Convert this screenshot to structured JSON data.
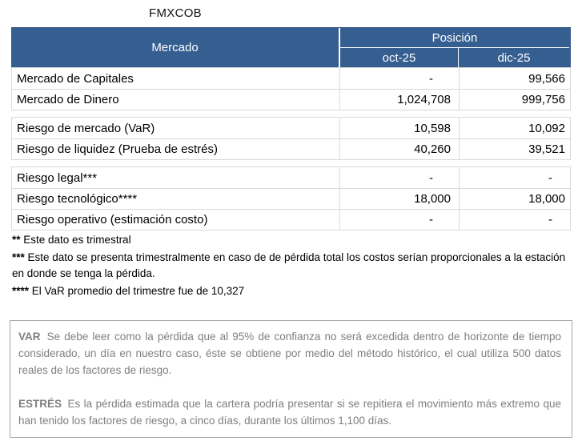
{
  "title": "FMXCOB",
  "table": {
    "header": {
      "mercado": "Mercado",
      "posicion": "Posición",
      "col1": "oct-25",
      "col2": "dic-25"
    },
    "sections": [
      {
        "rows": [
          {
            "label": "Mercado de Capitales",
            "oct": "-",
            "dic": "99,566"
          },
          {
            "label": "Mercado de Dinero",
            "oct": "1,024,708",
            "dic": "999,756"
          }
        ]
      },
      {
        "rows": [
          {
            "label": "Riesgo de mercado (VaR)",
            "oct": "10,598",
            "dic": "10,092"
          },
          {
            "label": "Riesgo de liquidez (Prueba de estrés)",
            "oct": "40,260",
            "dic": "39,521"
          }
        ]
      },
      {
        "rows": [
          {
            "label": "Riesgo legal***",
            "oct": "-",
            "dic": "-"
          },
          {
            "label": "Riesgo tecnológico****",
            "oct": "18,000",
            "dic": "18,000"
          },
          {
            "label": "Riesgo operativo (estimación costo)",
            "oct": "-",
            "dic": "-"
          }
        ]
      }
    ]
  },
  "footnotes": [
    {
      "marker": "**",
      "text": "Este dato es trimestral"
    },
    {
      "marker": "***",
      "text": "Este dato se presenta trimestralmente en caso de de pérdida total los costos serían proporcionales a la estación en donde se tenga la pérdida."
    },
    {
      "marker": "****",
      "text": "El VaR promedio del trimestre fue de 10,327"
    }
  ],
  "definitions": [
    {
      "term": "VAR",
      "text": "Se debe leer como la pérdida que al 95% de confianza no será excedida dentro de horizonte de tiempo considerado, un día en nuestro caso, éste se obtiene por medio del método histórico, el cual utiliza 500 datos reales de los factores de riesgo."
    },
    {
      "term": "ESTRÉS",
      "text": "Es la pérdida estimada que la cartera podría presentar si se repitiera el movimiento más extremo que han tenido los factores de riesgo, a cinco días, durante los últimos 1,100 días."
    }
  ],
  "colors": {
    "header_bg": "#365F91",
    "header_text": "#FFFFFF",
    "cell_border": "#D9D9D9",
    "box_border": "#A6A6A6",
    "box_text": "#7F7F7F"
  }
}
